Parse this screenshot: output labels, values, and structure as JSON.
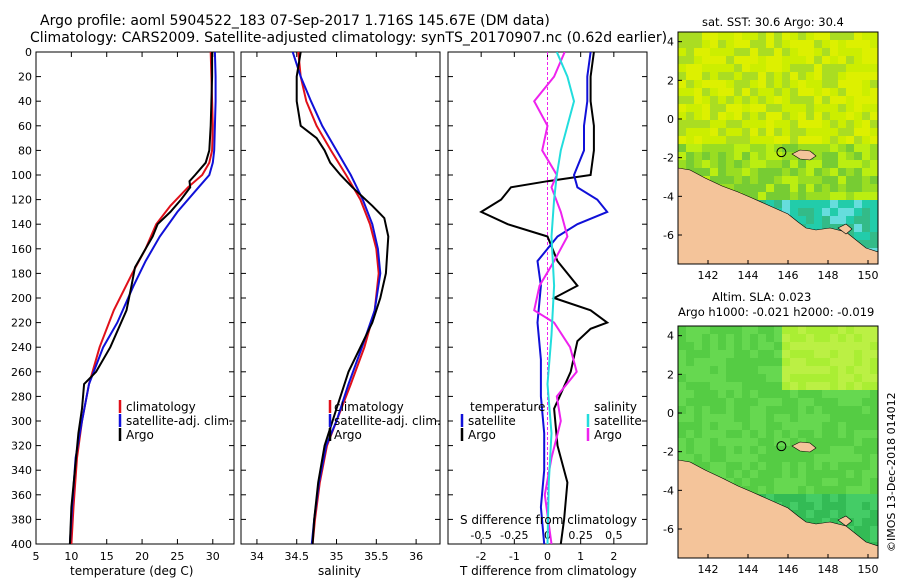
{
  "title": {
    "line1": "Argo profile: aoml 5904522_183 07-Sep-2017 1.716S 145.67E (DM data)",
    "line2": "Climatology: CARS2009. Satellite-adjusted climatology: synTS_20170907.nc (0.62d earlier)"
  },
  "colors": {
    "climatology": "#e0101a",
    "satellite": "#1010d8",
    "argo": "#000000",
    "salinity_diff": "#ee22ee",
    "salinity_sat": "#22dddd",
    "land": "#f4c49a"
  },
  "chart_data": [
    {
      "type": "line",
      "name": "temperature",
      "xlabel": "temperature (deg C)",
      "ylabel": "",
      "xlim": [
        5,
        33
      ],
      "ylim": [
        400,
        0
      ],
      "xticks": [
        "5",
        "10",
        "15",
        "20",
        "25",
        "30"
      ],
      "yticks": [
        "0",
        "20",
        "40",
        "60",
        "80",
        "100",
        "120",
        "140",
        "160",
        "180",
        "200",
        "220",
        "240",
        "260",
        "280",
        "300",
        "320",
        "340",
        "360",
        "380",
        "400"
      ],
      "legend": [
        "climatology",
        "satellite-adj. clim.",
        "Argo"
      ],
      "series": [
        {
          "name": "climatology",
          "color": "#e0101a",
          "x": [
            29.7,
            29.8,
            29.9,
            30.0,
            29.9,
            29.5,
            28.5,
            26.5,
            24.0,
            22.0,
            20.5,
            18.6,
            16.0,
            14.0,
            12.5,
            11.5,
            10.8,
            10.3,
            10.0
          ],
          "y": [
            0,
            20,
            40,
            60,
            80,
            90,
            100,
            110,
            125,
            140,
            160,
            180,
            210,
            240,
            270,
            300,
            330,
            370,
            400
          ]
        },
        {
          "name": "satellite-adj. clim.",
          "color": "#1010d8",
          "x": [
            30.3,
            30.4,
            30.4,
            30.3,
            30.2,
            30.0,
            29.5,
            28.0,
            25.0,
            22.5,
            20.5,
            18.8,
            16.5,
            14.5,
            12.5,
            11.5,
            10.6,
            10.1,
            9.8
          ],
          "y": [
            0,
            20,
            40,
            60,
            80,
            90,
            100,
            110,
            130,
            150,
            170,
            190,
            220,
            240,
            270,
            300,
            330,
            370,
            400
          ]
        },
        {
          "name": "Argo",
          "color": "#000000",
          "x": [
            29.9,
            29.9,
            29.8,
            29.7,
            29.5,
            29.0,
            27.5,
            26.7,
            26.8,
            25.5,
            24.0,
            22.2,
            21.5,
            20.5,
            19.0,
            18.5,
            17.8,
            15.5,
            13.5,
            11.8,
            11.5,
            11.0,
            10.5,
            10.0,
            9.8
          ],
          "y": [
            0,
            20,
            40,
            60,
            80,
            90,
            100,
            105,
            110,
            120,
            130,
            140,
            150,
            160,
            175,
            190,
            210,
            240,
            260,
            270,
            290,
            310,
            340,
            370,
            400
          ]
        }
      ]
    },
    {
      "type": "line",
      "name": "salinity",
      "xlabel": "salinity",
      "ylabel": "",
      "xlim": [
        33.8,
        36.3
      ],
      "ylim": [
        400,
        0
      ],
      "xticks": [
        "34",
        "34.5",
        "35",
        "35.5",
        "36"
      ],
      "legend": [
        "climatology",
        "satellite-adj. clim.",
        "Argo"
      ],
      "series": [
        {
          "name": "climatology",
          "color": "#e0101a",
          "x": [
            34.52,
            34.55,
            34.62,
            34.75,
            34.93,
            35.12,
            35.3,
            35.42,
            35.5,
            35.53,
            35.48,
            35.35,
            35.18,
            35.0,
            34.88,
            34.79,
            34.73,
            34.7
          ],
          "y": [
            0,
            20,
            40,
            60,
            80,
            100,
            120,
            140,
            160,
            180,
            210,
            240,
            270,
            300,
            320,
            350,
            380,
            400
          ]
        },
        {
          "name": "satellite-adj. clim.",
          "color": "#1010d8",
          "x": [
            34.45,
            34.55,
            34.68,
            34.82,
            35.0,
            35.18,
            35.33,
            35.45,
            35.52,
            35.55,
            35.48,
            35.32,
            35.15,
            35.0,
            34.87,
            34.78,
            34.72,
            34.69
          ],
          "y": [
            0,
            20,
            40,
            60,
            80,
            100,
            120,
            140,
            160,
            180,
            210,
            240,
            270,
            300,
            320,
            350,
            380,
            400
          ]
        },
        {
          "name": "Argo",
          "color": "#000000",
          "x": [
            34.55,
            34.5,
            34.5,
            34.55,
            34.75,
            34.85,
            34.92,
            35.05,
            35.2,
            35.45,
            35.6,
            35.65,
            35.62,
            35.55,
            35.45,
            35.3,
            35.15,
            35.0,
            34.85,
            34.77,
            34.72,
            34.7
          ],
          "y": [
            0,
            20,
            40,
            60,
            70,
            80,
            90,
            100,
            110,
            125,
            135,
            150,
            180,
            200,
            220,
            240,
            260,
            290,
            320,
            350,
            380,
            400
          ]
        }
      ]
    },
    {
      "type": "line",
      "name": "differences",
      "xlabel": "T difference from climatology",
      "xlabel2": "S difference from climatology",
      "xlim": [
        -3,
        3
      ],
      "ylim": [
        400,
        0
      ],
      "xticks": [
        "-2",
        "-1",
        "0",
        "1",
        "2"
      ],
      "xticks2": [
        "-0.5",
        "-0.25",
        "0",
        "0.25",
        "0.5"
      ],
      "legend_temperature": {
        "title": "temperature",
        "items": [
          "satellite",
          "Argo"
        ]
      },
      "legend_salinity": {
        "title": "salinity",
        "items": [
          "satellite",
          "Argo"
        ]
      },
      "series": [
        {
          "name": "temperature Argo",
          "color": "#000000",
          "x": [
            1.4,
            1.3,
            1.3,
            1.4,
            1.4,
            1.3,
            0.0,
            -1.1,
            -1.4,
            -2.0,
            -1.2,
            0.0,
            0.3,
            0.9,
            0.2,
            1.3,
            1.8,
            1.3,
            0.9,
            0.7,
            0.2,
            0.3,
            0.6,
            0.5,
            0.4
          ],
          "y": [
            0,
            20,
            40,
            60,
            80,
            100,
            105,
            110,
            120,
            130,
            140,
            150,
            170,
            190,
            200,
            210,
            220,
            225,
            235,
            260,
            290,
            320,
            350,
            380,
            400
          ]
        },
        {
          "name": "temperature satellite",
          "color": "#1010d8",
          "x": [
            1.3,
            1.2,
            1.2,
            1.1,
            1.1,
            0.8,
            0.9,
            1.5,
            1.8,
            0.9,
            0.3,
            -0.3,
            -0.2,
            -0.3,
            -0.2,
            -0.2,
            -0.1,
            -0.1,
            -0.2,
            -0.1
          ],
          "y": [
            0,
            20,
            40,
            60,
            80,
            100,
            110,
            120,
            130,
            140,
            150,
            170,
            190,
            220,
            250,
            280,
            310,
            340,
            370,
            400
          ]
        },
        {
          "name": "salinity Argo",
          "color": "#ee22ee",
          "x": [
            0.13,
            0.05,
            -0.1,
            0.0,
            -0.04,
            0.07,
            0.03,
            0.1,
            0.15,
            0.05,
            -0.06,
            -0.1,
            0.05,
            0.17,
            0.22,
            0.07,
            0.1,
            0.03,
            -0.02,
            0.03
          ],
          "y": [
            0,
            20,
            40,
            60,
            80,
            100,
            110,
            130,
            150,
            170,
            190,
            210,
            220,
            240,
            260,
            280,
            300,
            330,
            360,
            400
          ]
        },
        {
          "name": "salinity satellite",
          "color": "#22dddd",
          "x": [
            0.07,
            0.15,
            0.2,
            0.15,
            0.1,
            0.07,
            0.05,
            0.03,
            0.05,
            0.03,
            0.0,
            0.03,
            0.01,
            0.0
          ],
          "y": [
            0,
            20,
            40,
            60,
            80,
            100,
            120,
            150,
            190,
            230,
            270,
            310,
            350,
            400
          ]
        }
      ]
    },
    {
      "type": "heatmap",
      "name": "sst_map",
      "title": "sat. SST: 30.6 Argo: 30.4",
      "xlim": [
        140.5,
        150.5
      ],
      "ylim": [
        -7.5,
        4.5
      ],
      "xticks": [
        "142",
        "144",
        "146",
        "148",
        "150"
      ],
      "yticks": [
        "4",
        "2",
        "0",
        "-2",
        "-4",
        "-6"
      ],
      "marker": {
        "lon": 145.67,
        "lat": -1.716
      }
    },
    {
      "type": "heatmap",
      "name": "sla_map",
      "title": "Altim. SLA: 0.023",
      "subtitle": "Argo h1000: -0.021 h2000: -0.019",
      "xlim": [
        140.5,
        150.5
      ],
      "ylim": [
        -7.5,
        4.5
      ],
      "xticks": [
        "142",
        "144",
        "146",
        "148",
        "150"
      ],
      "yticks": [
        "4",
        "2",
        "0",
        "-2",
        "-4",
        "-6"
      ],
      "marker": {
        "lon": 145.67,
        "lat": -1.716
      }
    }
  ],
  "credit": "©IMOS 13-Dec-2018 014012"
}
